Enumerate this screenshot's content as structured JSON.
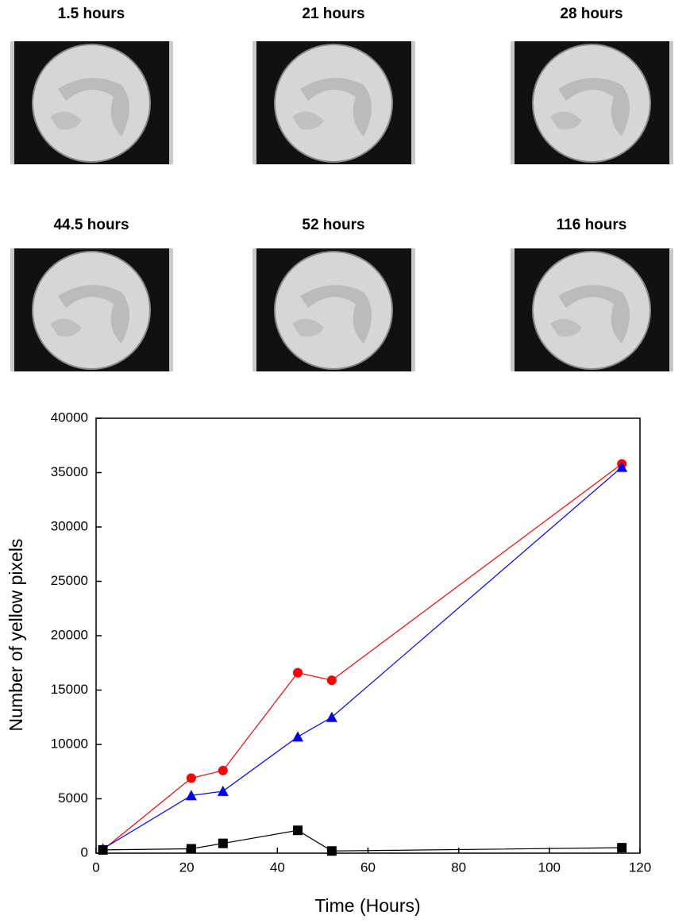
{
  "panels": [
    "1.5 hours",
    "21 hours",
    "28 hours",
    "44.5 hours",
    "52 hours",
    "116 hours"
  ],
  "chart_data": {
    "type": "line",
    "x_label": "Time (Hours)",
    "y_label": "Number of yellow pixels",
    "x": [
      1.5,
      21,
      28,
      44.5,
      52,
      116
    ],
    "series": [
      {
        "color": "#ff0000",
        "marker": "circle",
        "values": [
          300,
          6900,
          7600,
          16600,
          15900,
          35800
        ]
      },
      {
        "color": "#0000ff",
        "marker": "triangle",
        "values": [
          400,
          5300,
          5700,
          10700,
          12500,
          35500
        ]
      },
      {
        "color": "#000000",
        "marker": "square",
        "values": [
          300,
          400,
          900,
          2100,
          200,
          500
        ]
      }
    ],
    "xlim": [
      0,
      120
    ],
    "xticks": [
      0,
      20,
      40,
      60,
      80,
      100,
      120
    ],
    "ylim": [
      0,
      40000
    ],
    "yticks": [
      0,
      5000,
      10000,
      15000,
      20000,
      25000,
      30000,
      35000,
      40000
    ]
  }
}
